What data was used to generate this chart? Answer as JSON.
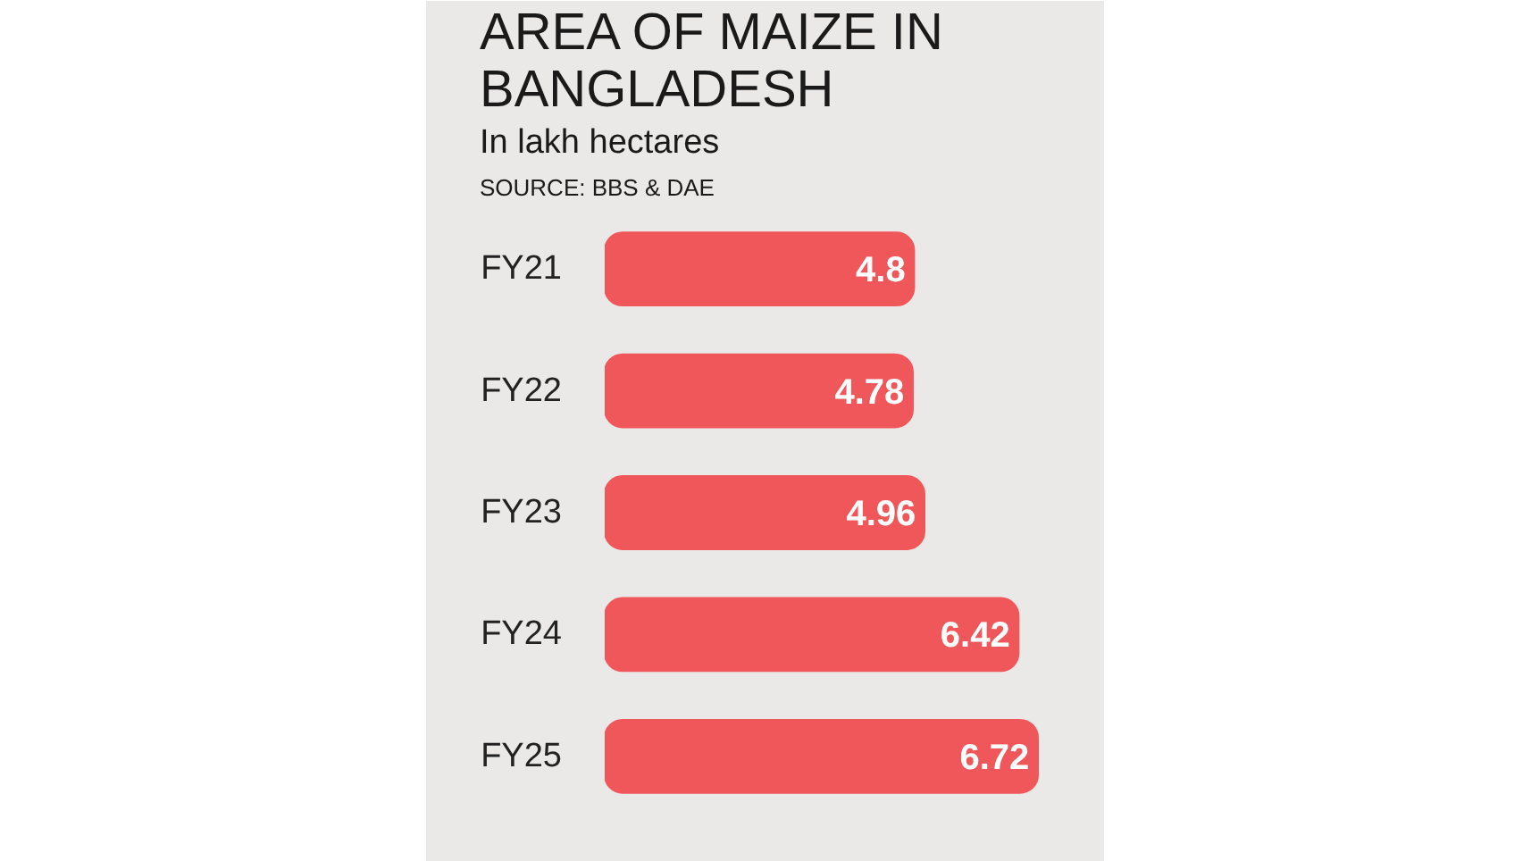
{
  "chart_data": {
    "type": "bar",
    "orientation": "horizontal",
    "title": "AREA OF MAIZE IN BANGLADESH",
    "subtitle": "In lakh hectares",
    "annotations": [
      "SOURCE: BBS & DAE"
    ],
    "categories": [
      "FY21",
      "FY22",
      "FY23",
      "FY24",
      "FY25"
    ],
    "values": [
      4.8,
      4.78,
      4.96,
      6.42,
      6.72
    ],
    "color": "#f0575b",
    "data_labels": true,
    "grid": false
  }
}
